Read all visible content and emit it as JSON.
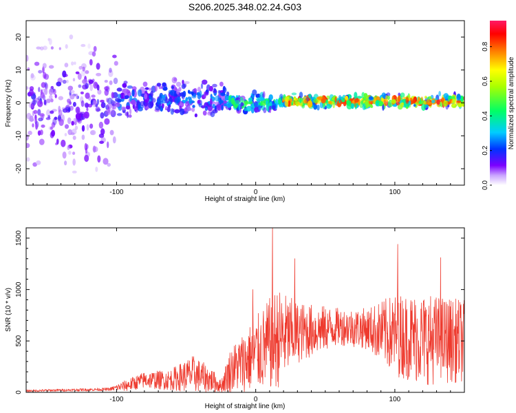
{
  "title": "S206.2025.348.02.24.G03",
  "chart_data": [
    {
      "type": "heatmap",
      "xlabel": "Height of straight line (km)",
      "ylabel": "Frequency (Hz)",
      "xlim": [
        -165,
        150
      ],
      "ylim": [
        -25,
        25
      ],
      "xticks": [
        -100,
        0,
        100
      ],
      "xtick_labels": [
        "-100",
        "0",
        "100"
      ],
      "yticks": [
        20,
        10,
        0,
        -10,
        -20
      ],
      "ytick_labels": [
        "20",
        "10",
        "0",
        "-10",
        "-20"
      ],
      "colorbar": {
        "label": "Normalized spectral amplitude",
        "range": [
          0,
          0.95
        ],
        "ticks": [
          0.0,
          0.2,
          0.4,
          0.6,
          0.8
        ],
        "tick_labels": [
          "0.0",
          "0.2",
          "0.4",
          "0.6",
          "0.8"
        ]
      },
      "bands": [
        {
          "x": [
            -165,
            -100
          ],
          "center_hz": 0,
          "spread_hz": 25,
          "amplitude": 0.12
        },
        {
          "x": [
            -100,
            -20
          ],
          "center_hz": 1,
          "spread_hz": 7,
          "amplitude": 0.2
        },
        {
          "x": [
            -20,
            20
          ],
          "center_hz": 0,
          "spread_hz": 4,
          "amplitude": 0.35
        },
        {
          "x": [
            20,
            150
          ],
          "center_hz": 0.5,
          "spread_hz": 2.5,
          "amplitude": 0.6
        }
      ]
    },
    {
      "type": "line",
      "xlabel": "Height of straight line (km)",
      "ylabel": "SNR (10 * v/v)",
      "xlim": [
        -165,
        150
      ],
      "ylim": [
        0,
        1600
      ],
      "xticks": [
        -100,
        0,
        100
      ],
      "xtick_labels": [
        "-100",
        "0",
        "100"
      ],
      "yticks": [
        0,
        500,
        1000,
        1500
      ],
      "ytick_labels": [
        "0",
        "500",
        "1000",
        "1500"
      ],
      "color": "#ee3a2e",
      "envelope": [
        {
          "x": -165,
          "mean": 15,
          "amp": 10
        },
        {
          "x": -105,
          "mean": 30,
          "amp": 15
        },
        {
          "x": -92,
          "mean": 70,
          "amp": 60
        },
        {
          "x": -80,
          "mean": 120,
          "amp": 80
        },
        {
          "x": -62,
          "mean": 120,
          "amp": 100
        },
        {
          "x": -45,
          "mean": 180,
          "amp": 180
        },
        {
          "x": -32,
          "mean": 120,
          "amp": 120
        },
        {
          "x": -25,
          "mean": 60,
          "amp": 60
        },
        {
          "x": -18,
          "mean": 220,
          "amp": 220
        },
        {
          "x": -8,
          "mean": 300,
          "amp": 300
        },
        {
          "x": 5,
          "mean": 420,
          "amp": 400
        },
        {
          "x": 15,
          "mean": 520,
          "amp": 500
        },
        {
          "x": 30,
          "mean": 580,
          "amp": 300
        },
        {
          "x": 60,
          "mean": 640,
          "amp": 180
        },
        {
          "x": 80,
          "mean": 620,
          "amp": 200
        },
        {
          "x": 100,
          "mean": 560,
          "amp": 400
        },
        {
          "x": 120,
          "mean": 520,
          "amp": 450
        },
        {
          "x": 150,
          "mean": 500,
          "amp": 400
        }
      ],
      "peaks": [
        {
          "x": 12,
          "y": 1600
        },
        {
          "x": -2,
          "y": 1000
        },
        {
          "x": 102,
          "y": 1440
        },
        {
          "x": 133,
          "y": 1310
        },
        {
          "x": 28,
          "y": 1300
        }
      ]
    }
  ]
}
